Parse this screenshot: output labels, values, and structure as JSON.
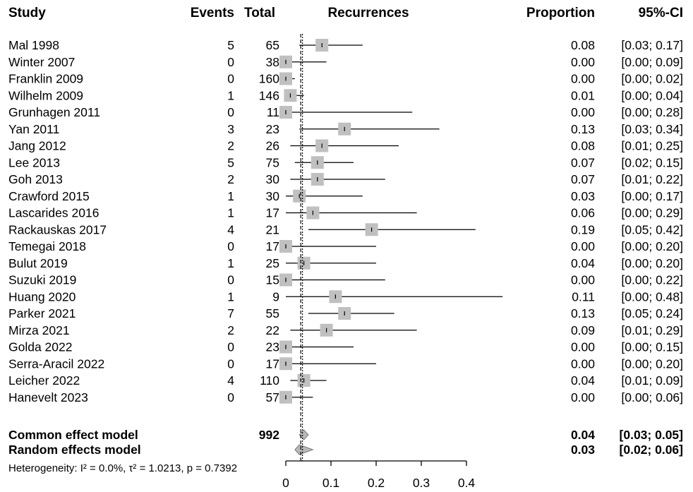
{
  "chart_data": {
    "type": "forest",
    "headers": {
      "study": "Study",
      "events": "Events",
      "total": "Total",
      "plot": "Recurrences",
      "proportion": "Proportion",
      "ci": "95%-CI"
    },
    "studies": [
      {
        "name": "Mal 1998",
        "events": "5",
        "total": "65",
        "prop": 0.08,
        "lo": 0.03,
        "hi": 0.17,
        "prop_text": "0.08",
        "ci_text": "[0.03; 0.17]",
        "weight": 1.0
      },
      {
        "name": "Winter 2007",
        "events": "0",
        "total": "38",
        "prop": 0.0,
        "lo": 0.0,
        "hi": 0.09,
        "prop_text": "0.00",
        "ci_text": "[0.00; 0.09]",
        "weight": 1.0
      },
      {
        "name": "Franklin 2009",
        "events": "0",
        "total": "160",
        "prop": 0.0,
        "lo": 0.0,
        "hi": 0.02,
        "prop_text": "0.00",
        "ci_text": "[0.00; 0.02]",
        "weight": 1.0
      },
      {
        "name": "Wilhelm 2009",
        "events": "1",
        "total": "146",
        "prop": 0.01,
        "lo": 0.0,
        "hi": 0.04,
        "prop_text": "0.01",
        "ci_text": "[0.00; 0.04]",
        "weight": 1.0
      },
      {
        "name": "Grunhagen 2011",
        "events": "0",
        "total": "11",
        "prop": 0.0,
        "lo": 0.0,
        "hi": 0.28,
        "prop_text": "0.00",
        "ci_text": "[0.00; 0.28]",
        "weight": 1.0
      },
      {
        "name": "Yan 2011",
        "events": "3",
        "total": "23",
        "prop": 0.13,
        "lo": 0.03,
        "hi": 0.34,
        "prop_text": "0.13",
        "ci_text": "[0.03; 0.34]",
        "weight": 1.0
      },
      {
        "name": "Jang 2012",
        "events": "2",
        "total": "26",
        "prop": 0.08,
        "lo": 0.01,
        "hi": 0.25,
        "prop_text": "0.08",
        "ci_text": "[0.01; 0.25]",
        "weight": 1.0
      },
      {
        "name": "Lee 2013",
        "events": "5",
        "total": "75",
        "prop": 0.07,
        "lo": 0.02,
        "hi": 0.15,
        "prop_text": "0.07",
        "ci_text": "[0.02; 0.15]",
        "weight": 1.0
      },
      {
        "name": "Goh 2013",
        "events": "2",
        "total": "30",
        "prop": 0.07,
        "lo": 0.01,
        "hi": 0.22,
        "prop_text": "0.07",
        "ci_text": "[0.01; 0.22]",
        "weight": 1.0
      },
      {
        "name": "Crawford 2015",
        "events": "1",
        "total": "30",
        "prop": 0.03,
        "lo": 0.0,
        "hi": 0.17,
        "prop_text": "0.03",
        "ci_text": "[0.00; 0.17]",
        "weight": 1.0
      },
      {
        "name": "Lascarides 2016",
        "events": "1",
        "total": "17",
        "prop": 0.06,
        "lo": 0.0,
        "hi": 0.29,
        "prop_text": "0.06",
        "ci_text": "[0.00; 0.29]",
        "weight": 1.0
      },
      {
        "name": "Rackauskas 2017",
        "events": "4",
        "total": "21",
        "prop": 0.19,
        "lo": 0.05,
        "hi": 0.42,
        "prop_text": "0.19",
        "ci_text": "[0.05; 0.42]",
        "weight": 1.0
      },
      {
        "name": "Temegai 2018",
        "events": "0",
        "total": "17",
        "prop": 0.0,
        "lo": 0.0,
        "hi": 0.2,
        "prop_text": "0.00",
        "ci_text": "[0.00; 0.20]",
        "weight": 1.0
      },
      {
        "name": "Bulut 2019",
        "events": "1",
        "total": "25",
        "prop": 0.04,
        "lo": 0.0,
        "hi": 0.2,
        "prop_text": "0.04",
        "ci_text": "[0.00; 0.20]",
        "weight": 1.0
      },
      {
        "name": "Suzuki 2019",
        "events": "0",
        "total": "15",
        "prop": 0.0,
        "lo": 0.0,
        "hi": 0.22,
        "prop_text": "0.00",
        "ci_text": "[0.00; 0.22]",
        "weight": 1.0
      },
      {
        "name": "Huang 2020",
        "events": "1",
        "total": "9",
        "prop": 0.11,
        "lo": 0.0,
        "hi": 0.48,
        "prop_text": "0.11",
        "ci_text": "[0.00; 0.48]",
        "weight": 1.0
      },
      {
        "name": "Parker 2021",
        "events": "7",
        "total": "55",
        "prop": 0.13,
        "lo": 0.05,
        "hi": 0.24,
        "prop_text": "0.13",
        "ci_text": "[0.05; 0.24]",
        "weight": 1.0
      },
      {
        "name": "Mirza 2021",
        "events": "2",
        "total": "22",
        "prop": 0.09,
        "lo": 0.01,
        "hi": 0.29,
        "prop_text": "0.09",
        "ci_text": "[0.01; 0.29]",
        "weight": 1.0
      },
      {
        "name": "Golda 2022",
        "events": "0",
        "total": "23",
        "prop": 0.0,
        "lo": 0.0,
        "hi": 0.15,
        "prop_text": "0.00",
        "ci_text": "[0.00; 0.15]",
        "weight": 1.0
      },
      {
        "name": "Serra-Aracil 2022",
        "events": "0",
        "total": "17",
        "prop": 0.0,
        "lo": 0.0,
        "hi": 0.2,
        "prop_text": "0.00",
        "ci_text": "[0.00; 0.20]",
        "weight": 1.0
      },
      {
        "name": "Leicher 2022",
        "events": "4",
        "total": "110",
        "prop": 0.04,
        "lo": 0.01,
        "hi": 0.09,
        "prop_text": "0.04",
        "ci_text": "[0.01; 0.09]",
        "weight": 1.0
      },
      {
        "name": "Hanevelt 2023",
        "events": "0",
        "total": "57",
        "prop": 0.0,
        "lo": 0.0,
        "hi": 0.06,
        "prop_text": "0.00",
        "ci_text": "[0.00; 0.06]",
        "weight": 1.0
      }
    ],
    "common": {
      "name": "Common effect model",
      "total": "992",
      "prop": 0.04,
      "lo": 0.03,
      "hi": 0.05,
      "prop_text": "0.04",
      "ci_text": "[0.03; 0.05]"
    },
    "random": {
      "name": "Random effects model",
      "prop": 0.03,
      "lo": 0.02,
      "hi": 0.06,
      "prop_text": "0.03",
      "ci_text": "[0.02; 0.06]"
    },
    "heterogeneity": "Heterogeneity: I² = 0.0%, τ² = 1.0213, p = 0.7392",
    "x_ticks": [
      0,
      0.1,
      0.2,
      0.3,
      0.4
    ],
    "x_tick_labels": [
      "0",
      "0.1",
      "0.2",
      "0.3",
      "0.4"
    ],
    "xlim": [
      0,
      0.48
    ],
    "colors": {
      "square": "#c0c0c0",
      "diamond": "#b8b8b8",
      "line": "#000000"
    }
  }
}
